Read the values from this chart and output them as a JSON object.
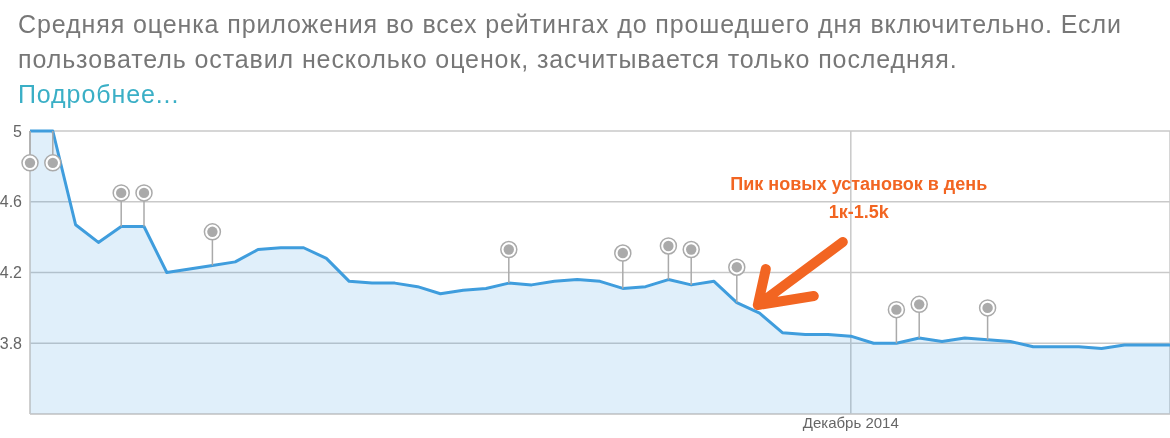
{
  "chart_data": {
    "type": "area",
    "title": "Средняя оценка приложения во всех рейтингах до прошедшего дня включительно. Если пользователь оставил несколько оценок, засчитывается только последняя.",
    "annotations": [
      "Подробнее...",
      "Пик новых установок в день\n1к-1.5k"
    ],
    "categories": [
      null,
      null,
      null,
      null,
      null,
      null,
      null,
      null,
      null,
      null,
      null,
      null,
      null,
      null,
      null,
      null,
      null,
      null,
      null,
      null,
      null,
      null,
      null,
      null,
      null,
      null,
      null,
      null,
      null,
      null,
      null,
      null,
      null,
      null,
      null,
      null,
      "Декабрь 2014",
      null,
      null,
      null,
      null,
      null,
      null,
      null,
      null,
      null,
      null,
      null,
      null,
      null,
      null
    ],
    "ylim": [
      3.4,
      5
    ],
    "yticks": [
      3.8,
      4.2,
      4.6,
      5
    ],
    "grid": true,
    "series": [
      {
        "type": "area",
        "color": "#3f9ddd",
        "marker": "none",
        "values": [
          5.0,
          5.0,
          4.47,
          4.37,
          4.46,
          4.46,
          4.2,
          4.22,
          4.24,
          4.26,
          4.33,
          4.34,
          4.34,
          4.28,
          4.15,
          4.14,
          4.14,
          4.12,
          4.08,
          4.1,
          4.11,
          4.14,
          4.13,
          4.15,
          4.16,
          4.15,
          4.11,
          4.12,
          4.16,
          4.13,
          4.15,
          4.03,
          3.97,
          3.86,
          3.85,
          3.85,
          3.84,
          3.8,
          3.8,
          3.83,
          3.81,
          3.83,
          3.82,
          3.81,
          3.78,
          3.78,
          3.78,
          3.77,
          3.79,
          3.79,
          3.79
        ]
      },
      {
        "type": "scatter",
        "color": "#aaaaaa",
        "marker": "circle",
        "values": [
          4.82,
          4.82,
          null,
          null,
          4.65,
          4.65,
          null,
          null,
          4.43,
          null,
          null,
          null,
          null,
          null,
          null,
          null,
          null,
          null,
          null,
          null,
          null,
          4.33,
          null,
          null,
          null,
          null,
          4.31,
          null,
          4.35,
          4.33,
          null,
          4.23,
          null,
          null,
          null,
          null,
          null,
          null,
          3.99,
          4.02,
          null,
          null,
          4.0,
          null,
          null,
          null,
          null,
          null,
          null,
          null,
          null
        ]
      }
    ]
  }
}
